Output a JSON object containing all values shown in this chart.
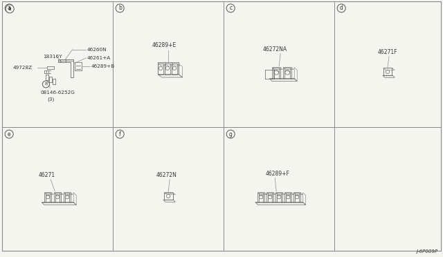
{
  "bg_color": "#f5f5f0",
  "border_color": "#888888",
  "line_color": "#888888",
  "text_color": "#333333",
  "figsize": [
    6.4,
    3.72
  ],
  "dpi": 100,
  "footer_text": "J-6P009P",
  "col_boundaries": [
    0.005,
    0.255,
    0.505,
    0.755,
    0.995
  ],
  "row_boundary": 0.505,
  "row_ranges": [
    [
      0.505,
      0.995
    ],
    [
      0.025,
      0.505
    ]
  ],
  "panels": [
    {
      "id": "a",
      "row": 0,
      "col": 0
    },
    {
      "id": "b",
      "row": 0,
      "col": 1
    },
    {
      "id": "c",
      "row": 0,
      "col": 2
    },
    {
      "id": "d",
      "row": 0,
      "col": 3
    },
    {
      "id": "e",
      "row": 1,
      "col": 0
    },
    {
      "id": "f",
      "row": 1,
      "col": 1
    },
    {
      "id": "g",
      "row": 1,
      "col": 2
    }
  ]
}
